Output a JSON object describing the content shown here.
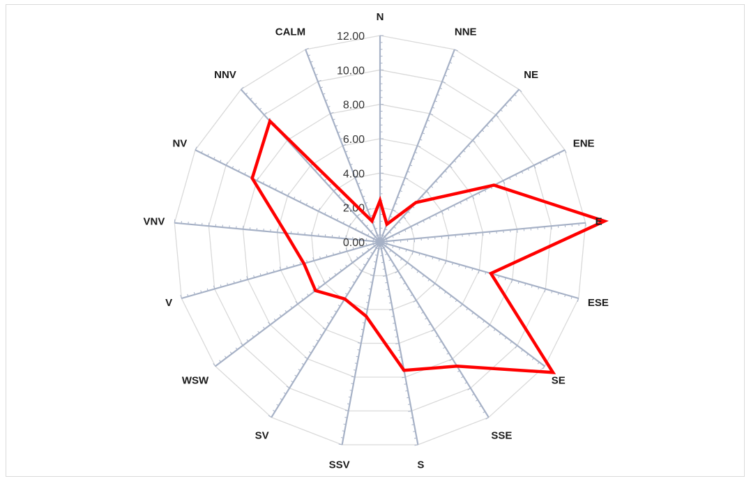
{
  "chart_data": {
    "type": "radar",
    "categories": [
      "N",
      "NNE",
      "NE",
      "ENE",
      "E",
      "ESE",
      "SE",
      "SSE",
      "S",
      "SSV",
      "SV",
      "WSW",
      "V",
      "VNV",
      "NV",
      "NNV",
      "CALM"
    ],
    "series": [
      {
        "values": [
          2.4,
          1.1,
          3.1,
          7.4,
          13.1,
          6.7,
          12.6,
          8.5,
          7.6,
          4.4,
          3.9,
          4.7,
          4.6,
          5.5,
          8.3,
          9.5,
          1.3
        ],
        "color": "#ff0000"
      }
    ],
    "ylim": [
      0,
      12
    ],
    "axis_ticks": [
      "0.00",
      "2.00",
      "4.00",
      "6.00",
      "8.00",
      "10.00",
      "12.00"
    ],
    "grid": true,
    "legend": "none",
    "colors": {
      "grid": "#d9d9d9",
      "spokes": "#a6b1c6",
      "series": "#ff0000"
    }
  }
}
